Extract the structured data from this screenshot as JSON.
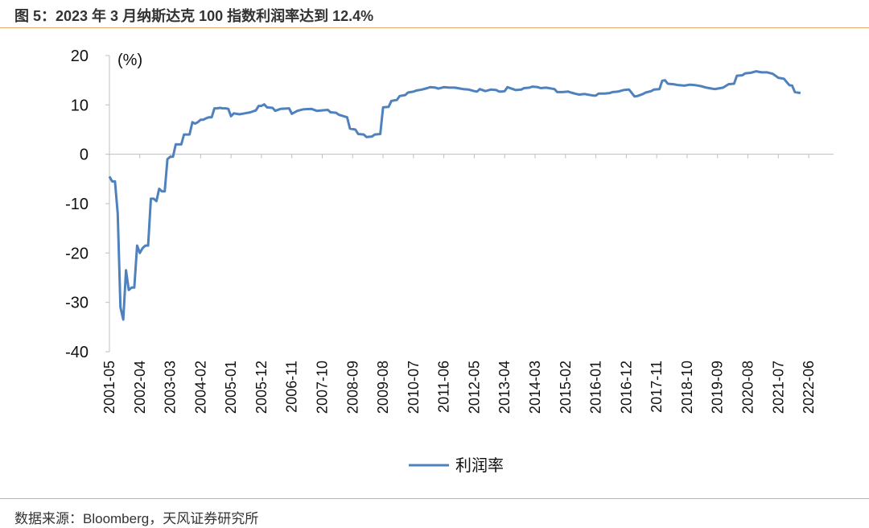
{
  "header": {
    "title": "图 5：2023 年 3 月纳斯达克 100 指数利润率达到 12.4%"
  },
  "footer": {
    "source": "数据来源：Bloomberg，天风证券研究所"
  },
  "chart_data": {
    "type": "line",
    "unit_label": "(%)",
    "ylim": [
      -40,
      20
    ],
    "yticks": [
      20,
      10,
      0,
      -10,
      -20,
      -30,
      -40
    ],
    "xticks": [
      "2001-05",
      "2002-04",
      "2003-03",
      "2004-02",
      "2005-01",
      "2005-12",
      "2006-11",
      "2007-10",
      "2008-09",
      "2009-08",
      "2010-07",
      "2011-06",
      "2012-05",
      "2013-04",
      "2014-03",
      "2015-02",
      "2016-01",
      "2016-12",
      "2017-11",
      "2018-10",
      "2019-09",
      "2020-08",
      "2021-07",
      "2022-06"
    ],
    "x_start": "2001-05",
    "x_end": "2023-03",
    "legend_position": "bottom",
    "series": [
      {
        "name": "利润率",
        "color": "#4F81BD",
        "points": [
          [
            "2001-05",
            -4.5
          ],
          [
            "2001-06",
            -5.5
          ],
          [
            "2001-07",
            -5.5
          ],
          [
            "2001-08",
            -12
          ],
          [
            "2001-09",
            -31
          ],
          [
            "2001-10",
            -33.5
          ],
          [
            "2001-11",
            -23.5
          ],
          [
            "2001-12",
            -27.5
          ],
          [
            "2002-01",
            -27
          ],
          [
            "2002-02",
            -27
          ],
          [
            "2002-03",
            -18.5
          ],
          [
            "2002-04",
            -20
          ],
          [
            "2002-05",
            -19
          ],
          [
            "2002-06",
            -18.5
          ],
          [
            "2002-07",
            -18.5
          ],
          [
            "2002-08",
            -9
          ],
          [
            "2002-09",
            -9
          ],
          [
            "2002-10",
            -9.5
          ],
          [
            "2002-11",
            -7
          ],
          [
            "2002-12",
            -7.5
          ],
          [
            "2003-01",
            -7.5
          ],
          [
            "2003-02",
            -1
          ],
          [
            "2003-03",
            -0.5
          ],
          [
            "2003-04",
            -0.5
          ],
          [
            "2003-05",
            2
          ],
          [
            "2003-06",
            2
          ],
          [
            "2003-07",
            2
          ],
          [
            "2003-08",
            4
          ],
          [
            "2003-09",
            4
          ],
          [
            "2003-10",
            4
          ],
          [
            "2003-11",
            6.5
          ],
          [
            "2003-12",
            6.2
          ],
          [
            "2004-01",
            6.5
          ],
          [
            "2004-02",
            7
          ],
          [
            "2004-03",
            7
          ],
          [
            "2004-04",
            7.3
          ],
          [
            "2004-05",
            7.5
          ],
          [
            "2004-06",
            7.5
          ],
          [
            "2004-07",
            9.3
          ],
          [
            "2004-08",
            9.3
          ],
          [
            "2004-09",
            9.4
          ],
          [
            "2004-10",
            9.3
          ],
          [
            "2004-11",
            9.3
          ],
          [
            "2004-12",
            9.2
          ],
          [
            "2005-01",
            7.7
          ],
          [
            "2005-02",
            8.3
          ],
          [
            "2005-03",
            8.2
          ],
          [
            "2005-04",
            8.1
          ],
          [
            "2005-06",
            8.3
          ],
          [
            "2005-08",
            8.5
          ],
          [
            "2005-10",
            8.9
          ],
          [
            "2005-11",
            9.8
          ],
          [
            "2005-12",
            9.8
          ],
          [
            "2006-01",
            10.1
          ],
          [
            "2006-02",
            9.5
          ],
          [
            "2006-04",
            9.4
          ],
          [
            "2006-05",
            8.8
          ],
          [
            "2006-07",
            9.2
          ],
          [
            "2006-10",
            9.3
          ],
          [
            "2006-11",
            8.2
          ],
          [
            "2007-01",
            8.8
          ],
          [
            "2007-03",
            9.1
          ],
          [
            "2007-06",
            9.2
          ],
          [
            "2007-08",
            8.8
          ],
          [
            "2007-12",
            9
          ],
          [
            "2008-01",
            8.5
          ],
          [
            "2008-03",
            8.4
          ],
          [
            "2008-04",
            8
          ],
          [
            "2008-07",
            7.5
          ],
          [
            "2008-08",
            5.2
          ],
          [
            "2008-10",
            5
          ],
          [
            "2008-11",
            4.1
          ],
          [
            "2009-01",
            4
          ],
          [
            "2009-02",
            3.5
          ],
          [
            "2009-04",
            3.6
          ],
          [
            "2009-05",
            4
          ],
          [
            "2009-07",
            4.1
          ],
          [
            "2009-08",
            9.5
          ],
          [
            "2009-10",
            9.6
          ],
          [
            "2009-11",
            10.8
          ],
          [
            "2010-01",
            11
          ],
          [
            "2010-02",
            11.8
          ],
          [
            "2010-04",
            12
          ],
          [
            "2010-05",
            12.5
          ],
          [
            "2010-07",
            12.7
          ],
          [
            "2010-08",
            12.9
          ],
          [
            "2010-10",
            13.1
          ],
          [
            "2010-12",
            13.4
          ],
          [
            "2011-01",
            13.6
          ],
          [
            "2011-03",
            13.5
          ],
          [
            "2011-04",
            13.3
          ],
          [
            "2011-06",
            13.6
          ],
          [
            "2011-08",
            13.5
          ],
          [
            "2011-10",
            13.5
          ],
          [
            "2011-12",
            13.3
          ],
          [
            "2012-01",
            13.2
          ],
          [
            "2012-03",
            13.1
          ],
          [
            "2012-05",
            12.8
          ],
          [
            "2012-06",
            12.7
          ],
          [
            "2012-07",
            13.2
          ],
          [
            "2012-08",
            13
          ],
          [
            "2012-09",
            12.8
          ],
          [
            "2012-11",
            13.1
          ],
          [
            "2013-01",
            13
          ],
          [
            "2013-02",
            12.7
          ],
          [
            "2013-03",
            12.7
          ],
          [
            "2013-04",
            12.8
          ],
          [
            "2013-05",
            13.6
          ],
          [
            "2013-07",
            13.2
          ],
          [
            "2013-08",
            13
          ],
          [
            "2013-10",
            13.1
          ],
          [
            "2013-11",
            13.4
          ],
          [
            "2014-01",
            13.5
          ],
          [
            "2014-02",
            13.7
          ],
          [
            "2014-04",
            13.6
          ],
          [
            "2014-05",
            13.4
          ],
          [
            "2014-07",
            13.5
          ],
          [
            "2014-08",
            13.4
          ],
          [
            "2014-10",
            13.2
          ],
          [
            "2014-11",
            12.6
          ],
          [
            "2015-01",
            12.6
          ],
          [
            "2015-03",
            12.7
          ],
          [
            "2015-04",
            12.5
          ],
          [
            "2015-06",
            12.2
          ],
          [
            "2015-07",
            12.1
          ],
          [
            "2015-09",
            12.2
          ],
          [
            "2015-10",
            12.1
          ],
          [
            "2015-12",
            11.9
          ],
          [
            "2016-01",
            11.9
          ],
          [
            "2016-02",
            12.3
          ],
          [
            "2016-04",
            12.3
          ],
          [
            "2016-06",
            12.4
          ],
          [
            "2016-07",
            12.6
          ],
          [
            "2016-09",
            12.7
          ],
          [
            "2016-11",
            13
          ],
          [
            "2017-01",
            13.1
          ],
          [
            "2017-03",
            11.7
          ],
          [
            "2017-04",
            11.8
          ],
          [
            "2017-06",
            12.2
          ],
          [
            "2017-07",
            12.5
          ],
          [
            "2017-09",
            12.8
          ],
          [
            "2017-10",
            13.1
          ],
          [
            "2017-12",
            13.2
          ],
          [
            "2018-01",
            14.9
          ],
          [
            "2018-02",
            15
          ],
          [
            "2018-03",
            14.3
          ],
          [
            "2018-05",
            14.2
          ],
          [
            "2018-07",
            14
          ],
          [
            "2018-09",
            13.9
          ],
          [
            "2018-11",
            14.1
          ],
          [
            "2019-01",
            14
          ],
          [
            "2019-03",
            13.8
          ],
          [
            "2019-05",
            13.5
          ],
          [
            "2019-07",
            13.3
          ],
          [
            "2019-08",
            13.2
          ],
          [
            "2019-10",
            13.4
          ],
          [
            "2019-11",
            13.5
          ],
          [
            "2020-01",
            14.2
          ],
          [
            "2020-03",
            14.3
          ],
          [
            "2020-04",
            15.9
          ],
          [
            "2020-06",
            16
          ],
          [
            "2020-07",
            16.4
          ],
          [
            "2020-09",
            16.5
          ],
          [
            "2020-11",
            16.8
          ],
          [
            "2021-01",
            16.6
          ],
          [
            "2021-03",
            16.6
          ],
          [
            "2021-05",
            16.3
          ],
          [
            "2021-07",
            15.5
          ],
          [
            "2021-09",
            15.3
          ],
          [
            "2021-11",
            14
          ],
          [
            "2021-12",
            13.9
          ],
          [
            "2022-01",
            12.6
          ],
          [
            "2022-03",
            12.4
          ]
        ]
      }
    ]
  }
}
